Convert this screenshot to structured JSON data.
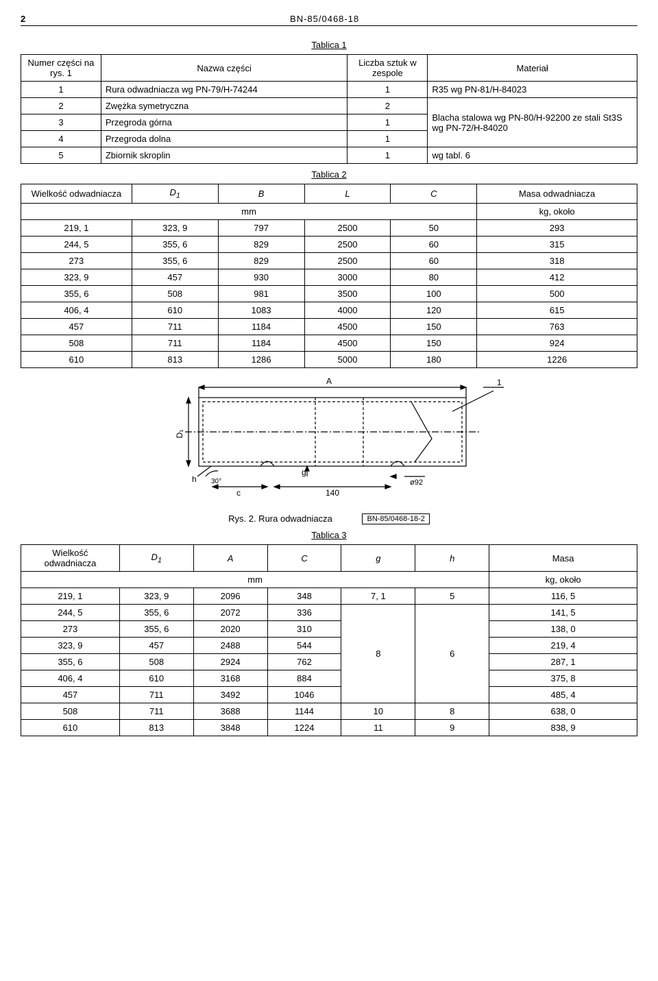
{
  "header": {
    "page_number": "2",
    "doc_id": "BN-85/0468-18"
  },
  "table1": {
    "caption": "Tablica 1",
    "headers": {
      "col1": "Numer części na rys. 1",
      "col2": "Nazwa części",
      "col3": "Liczba sztuk w zespole",
      "col4": "Materiał"
    },
    "rows": [
      {
        "num": "1",
        "name": "Rura odwadniacza wg PN-79/H-74244",
        "qty": "1",
        "mat": "R35 wg PN-81/H-84023"
      },
      {
        "num": "2",
        "name": "Zwężka symetryczna",
        "qty": "2"
      },
      {
        "num": "3",
        "name": "Przegroda górna",
        "qty": "1"
      },
      {
        "num": "4",
        "name": "Przegroda dolna",
        "qty": "1"
      },
      {
        "num": "5",
        "name": "Zbiornik skroplin",
        "qty": "1",
        "mat": "wg tabl. 6"
      }
    ],
    "mat_merged": "Blacha stalowa wg PN-80/H-92200 ze stali St3S wg PN-72/H-84020"
  },
  "table2": {
    "caption": "Tablica 2",
    "headers": {
      "c1": "Wielkość odwadniacza",
      "c2": "D",
      "c2sub": "1",
      "c3": "B",
      "c4": "L",
      "c5": "C",
      "c6": "Masa odwadniacza",
      "unit_mm": "mm",
      "unit_kg": "kg, około"
    },
    "rows": [
      [
        "219, 1",
        "323, 9",
        "797",
        "2500",
        "50",
        "293"
      ],
      [
        "244, 5",
        "355, 6",
        "829",
        "2500",
        "60",
        "315"
      ],
      [
        "273",
        "355, 6",
        "829",
        "2500",
        "60",
        "318"
      ],
      [
        "323, 9",
        "457",
        "930",
        "3000",
        "80",
        "412"
      ],
      [
        "355, 6",
        "508",
        "981",
        "3500",
        "100",
        "500"
      ],
      [
        "406, 4",
        "610",
        "1083",
        "4000",
        "120",
        "615"
      ],
      [
        "457",
        "711",
        "1184",
        "4500",
        "150",
        "763"
      ],
      [
        "508",
        "711",
        "1184",
        "4500",
        "150",
        "924"
      ],
      [
        "610",
        "813",
        "1286",
        "5000",
        "180",
        "1226"
      ]
    ]
  },
  "figure": {
    "caption": "Rys. 2. Rura odwadniacza",
    "box_label": "BN-85/0468-18-2",
    "labels": {
      "A": "A",
      "D1": "D₁",
      "g": "g",
      "h": "h",
      "angle": "30°",
      "c": "c",
      "d140": "140",
      "phi92": "ø92",
      "one": "1"
    },
    "colors": {
      "stroke": "#000000",
      "bg": "#ffffff",
      "dash": "4,3"
    }
  },
  "table3": {
    "caption": "Tablica 3",
    "headers": {
      "c1": "Wielkość odwadniacza",
      "c2": "D",
      "c2sub": "1",
      "c3": "A",
      "c4": "C",
      "c5": "g",
      "c6": "h",
      "c7": "Masa",
      "unit_mm": "mm",
      "unit_kg": "kg, około"
    },
    "rows": [
      {
        "v": [
          "219, 1",
          "323, 9",
          "2096",
          "348",
          "7, 1",
          "5",
          "116, 5"
        ]
      },
      {
        "v": [
          "244, 5",
          "355, 6",
          "2072",
          "336",
          null,
          null,
          "141, 5"
        ]
      },
      {
        "v": [
          "273",
          "355, 6",
          "2020",
          "310",
          null,
          null,
          "138, 0"
        ]
      },
      {
        "v": [
          "323, 9",
          "457",
          "2488",
          "544",
          null,
          null,
          "219, 4"
        ]
      },
      {
        "v": [
          "355, 6",
          "508",
          "2924",
          "762",
          null,
          null,
          "287, 1"
        ]
      },
      {
        "v": [
          "406, 4",
          "610",
          "3168",
          "884",
          null,
          null,
          "375, 8"
        ]
      },
      {
        "v": [
          "457",
          "711",
          "3492",
          "1046",
          null,
          null,
          "485, 4"
        ]
      },
      {
        "v": [
          "508",
          "711",
          "3688",
          "1144",
          "10",
          "8",
          "638, 0"
        ]
      },
      {
        "v": [
          "610",
          "813",
          "3848",
          "1224",
          "11",
          "9",
          "838, 9"
        ]
      }
    ],
    "merged_g": "8",
    "merged_h": "6"
  }
}
